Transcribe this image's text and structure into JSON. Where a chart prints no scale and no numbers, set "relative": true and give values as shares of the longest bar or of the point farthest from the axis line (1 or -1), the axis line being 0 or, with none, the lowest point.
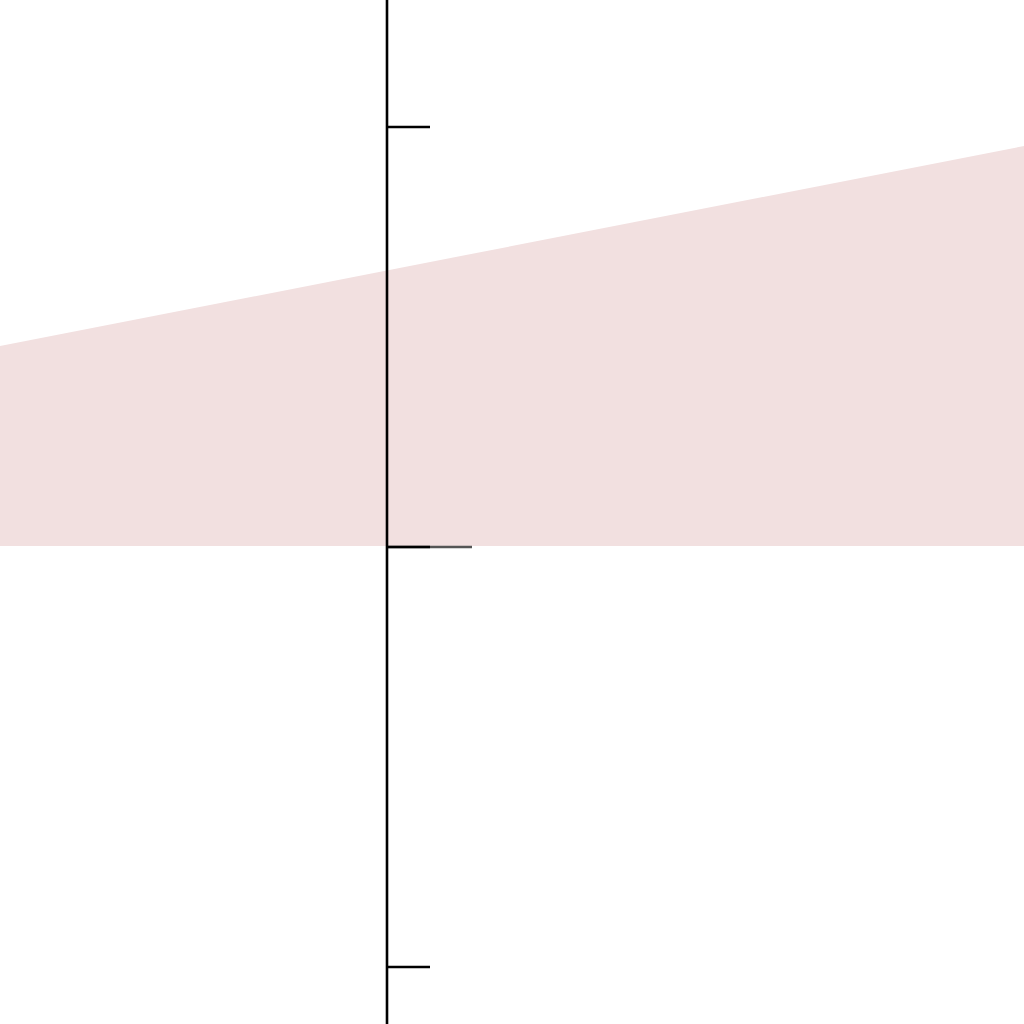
{
  "chart_data": {
    "type": "area",
    "relative": true,
    "categories": [
      null,
      null
    ],
    "values": [
      0.5,
      1
    ],
    "color": "#f2e0e0"
  }
}
